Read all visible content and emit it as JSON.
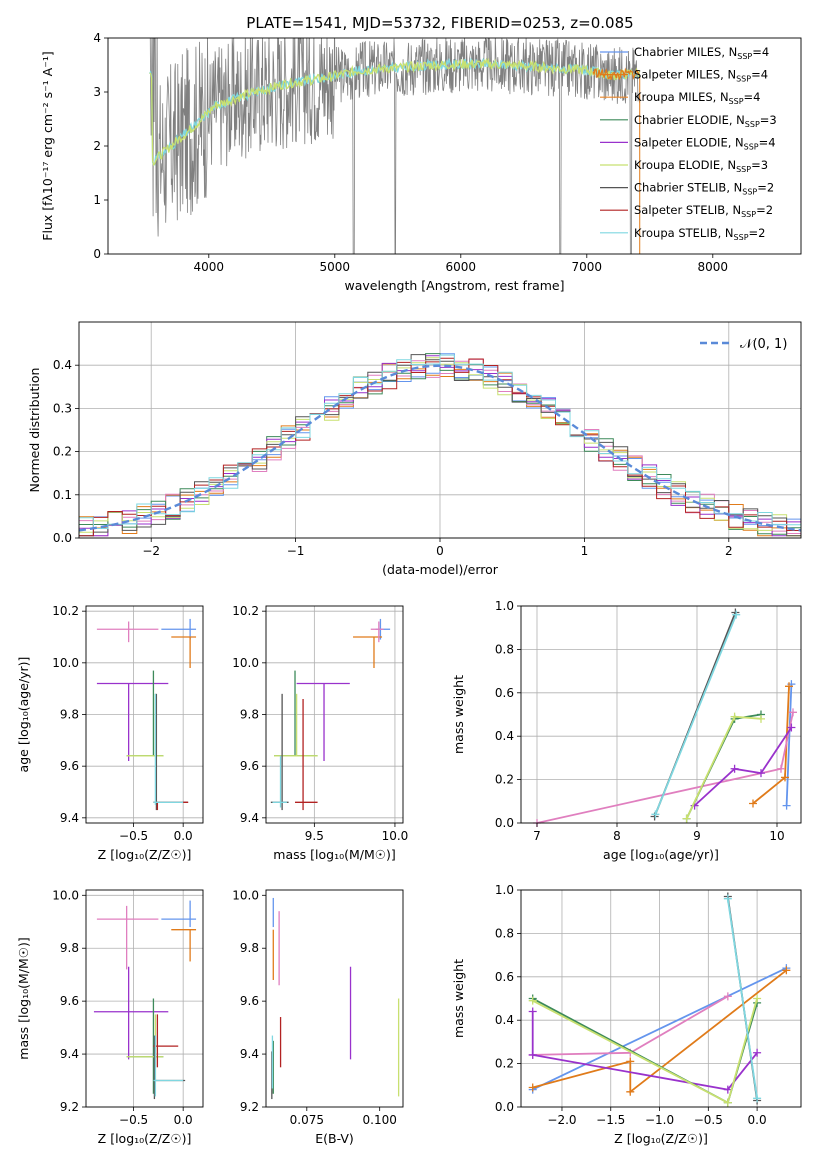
{
  "title": "PLATE=1541, MJD=53732, FIBERID=0253, z=0.085",
  "colors": {
    "chabrier_miles": "#6495ed",
    "salpeter_miles": "#e07b1a",
    "kroupa_miles": "#e8862a",
    "chabrier_elodie": "#3d8a5a",
    "salpeter_elodie": "#9932cc",
    "kroupa_elodie": "#c8e070",
    "chabrier_stelib": "#555555",
    "salpeter_stelib": "#b22222",
    "kroupa_stelib": "#7fd7e0",
    "pink": "#e07fbf",
    "data": "#808080",
    "normal": "#5a8ad8"
  },
  "chart_data": [
    {
      "id": "spectrum",
      "type": "line",
      "xlabel": "wavelength [Angstrom, rest frame]",
      "ylabel": "Flux [f$\\lambda$10$^{-17}$ erg cm$^{-2}$ s$^{-1}$ A$^{-1}$]",
      "ylabel_display": "Flux [fλ10⁻¹⁷ erg cm⁻² s⁻¹ A⁻¹]",
      "xlim": [
        3200,
        8700
      ],
      "ylim": [
        0,
        4
      ],
      "xticks": [
        4000,
        5000,
        6000,
        7000,
        8000
      ],
      "yticks": [
        0,
        1,
        2,
        3,
        4
      ],
      "grid": false,
      "legend_position": "top-right",
      "legend": [
        {
          "label": "Chabrier MILES, N",
          "sub": "SSP",
          "tail": "=4",
          "color_key": "chabrier_miles"
        },
        {
          "label": "Salpeter MILES, N",
          "sub": "SSP",
          "tail": "=4",
          "color_key": "salpeter_miles"
        },
        {
          "label": "Kroupa MILES, N",
          "sub": "SSP",
          "tail": "=4",
          "color_key": "kroupa_miles"
        },
        {
          "label": "Chabrier ELODIE, N",
          "sub": "SSP",
          "tail": "=3",
          "color_key": "chabrier_elodie"
        },
        {
          "label": "Salpeter ELODIE, N",
          "sub": "SSP",
          "tail": "=4",
          "color_key": "salpeter_elodie"
        },
        {
          "label": "Kroupa ELODIE, N",
          "sub": "SSP",
          "tail": "=3",
          "color_key": "kroupa_elodie"
        },
        {
          "label": "Chabrier STELIB, N",
          "sub": "SSP",
          "tail": "=2",
          "color_key": "chabrier_stelib"
        },
        {
          "label": "Salpeter STELIB, N",
          "sub": "SSP",
          "tail": "=2",
          "color_key": "salpeter_stelib"
        },
        {
          "label": "Kroupa STELIB, N",
          "sub": "SSP",
          "tail": "=2",
          "color_key": "kroupa_stelib"
        }
      ],
      "continuum": {
        "x": [
          3550,
          3700,
          3900,
          4050,
          4300,
          4600,
          4900,
          5200,
          5500,
          5800,
          6100,
          6400,
          6700,
          7000,
          7200,
          7400
        ],
        "y": [
          1.7,
          2.0,
          2.4,
          2.75,
          2.95,
          3.15,
          3.25,
          3.4,
          3.45,
          3.5,
          3.52,
          3.5,
          3.45,
          3.4,
          3.3,
          3.35
        ]
      },
      "models": [
        {
          "x0": 3530,
          "x1": 7420,
          "color_key": "kroupa_stelib"
        },
        {
          "x0": 3530,
          "x1": 7420,
          "color_key": "kroupa_elodie"
        },
        {
          "x0": 7050,
          "x1": 7420,
          "color_key": "salpeter_miles"
        }
      ]
    },
    {
      "id": "residuals",
      "type": "histogram",
      "xlabel": "(data-model)/error",
      "ylabel": "Normed distribution",
      "xlim": [
        -2.5,
        2.5
      ],
      "ylim": [
        0,
        0.5
      ],
      "xticks": [
        -2,
        -1,
        0,
        1,
        2
      ],
      "yticks": [
        0.0,
        0.1,
        0.2,
        0.3,
        0.4
      ],
      "ytick_labels": [
        "0.0",
        "0.1",
        "0.2",
        "0.3",
        "0.4"
      ],
      "xtick_labels": [
        "−2",
        "−1",
        "0",
        "1",
        "2"
      ],
      "grid": true,
      "legend_position": "top-right",
      "legend": [
        {
          "label": "𝒩(0, 1)",
          "color_key": "normal"
        }
      ],
      "bin_width": 0.1,
      "series_colors": [
        "chabrier_miles",
        "salpeter_miles",
        "pink",
        "chabrier_elodie",
        "salpeter_elodie",
        "kroupa_elodie",
        "chabrier_stelib",
        "salpeter_stelib",
        "kroupa_stelib"
      ],
      "normal_mean": 0,
      "normal_sigma": 1
    },
    {
      "id": "age_vs_z",
      "type": "errorbar",
      "xlabel": "Z [log₁₀(Z/Z☉)]",
      "ylabel": "age  [log₁₀(age/yr)]",
      "xlim": [
        -0.98,
        0.2
      ],
      "ylim": [
        9.38,
        10.22
      ],
      "xticks": [
        -0.5,
        0.0
      ],
      "xtick_labels": [
        "−0.5",
        "0.0"
      ],
      "yticks": [
        9.4,
        9.6,
        9.8,
        10.0,
        10.2
      ],
      "ytick_labels": [
        "9.4",
        "9.6",
        "9.8",
        "10.0",
        "10.2"
      ],
      "grid": true,
      "points": [
        {
          "x": 0.07,
          "y": 10.13,
          "xl": -0.22,
          "xh": 0.13,
          "yl": 10.09,
          "yh": 10.17,
          "color_key": "chabrier_miles"
        },
        {
          "x": 0.07,
          "y": 10.1,
          "xl": -0.12,
          "xh": 0.13,
          "yl": 9.98,
          "yh": 10.1,
          "color_key": "salpeter_miles"
        },
        {
          "x": -0.55,
          "y": 10.13,
          "xl": -0.87,
          "xh": -0.25,
          "yl": 10.08,
          "yh": 10.16,
          "color_key": "pink"
        },
        {
          "x": -0.55,
          "y": 9.92,
          "xl": -0.87,
          "xh": -0.15,
          "yl": 9.62,
          "yh": 9.92,
          "color_key": "salpeter_elodie"
        },
        {
          "x": -0.3,
          "y": 9.64,
          "xl": -0.57,
          "xh": -0.2,
          "yl": 9.64,
          "yh": 9.97,
          "color_key": "chabrier_elodie"
        },
        {
          "x": -0.28,
          "y": 9.64,
          "xl": -0.57,
          "xh": -0.2,
          "yl": 9.64,
          "yh": 9.88,
          "color_key": "kroupa_elodie"
        },
        {
          "x": -0.27,
          "y": 9.46,
          "xl": -0.3,
          "xh": 0.05,
          "yl": 9.43,
          "yh": 9.88,
          "color_key": "chabrier_stelib"
        },
        {
          "x": -0.26,
          "y": 9.46,
          "xl": -0.3,
          "xh": 0.05,
          "yl": 9.43,
          "yh": 9.46,
          "color_key": "salpeter_stelib"
        },
        {
          "x": -0.28,
          "y": 9.46,
          "xl": -0.3,
          "xh": 0.0,
          "yl": 9.45,
          "yh": 9.88,
          "color_key": "kroupa_stelib"
        }
      ]
    },
    {
      "id": "age_vs_mass",
      "type": "errorbar",
      "xlabel": "mass [log₁₀(M/M☉)]",
      "ylabel": "",
      "xlim": [
        9.2,
        10.05
      ],
      "ylim": [
        9.38,
        10.22
      ],
      "xticks": [
        9.5,
        10.0
      ],
      "xtick_labels": [
        "9.5",
        "10.0"
      ],
      "yticks": [
        9.4,
        9.6,
        9.8,
        10.0,
        10.2
      ],
      "ytick_labels": [
        "9.4",
        "9.6",
        "9.8",
        "10.0",
        "10.2"
      ],
      "grid": true,
      "points": [
        {
          "x": 9.91,
          "y": 10.13,
          "xl": 9.88,
          "xh": 9.97,
          "yl": 10.09,
          "yh": 10.17,
          "color_key": "chabrier_miles"
        },
        {
          "x": 9.87,
          "y": 10.1,
          "xl": 9.74,
          "xh": 9.92,
          "yl": 9.98,
          "yh": 10.1,
          "color_key": "salpeter_miles"
        },
        {
          "x": 9.9,
          "y": 10.13,
          "xl": 9.85,
          "xh": 9.93,
          "yl": 10.08,
          "yh": 10.16,
          "color_key": "pink"
        },
        {
          "x": 9.56,
          "y": 9.92,
          "xl": 9.39,
          "xh": 9.72,
          "yl": 9.62,
          "yh": 9.92,
          "color_key": "salpeter_elodie"
        },
        {
          "x": 9.38,
          "y": 9.64,
          "xl": 9.25,
          "xh": 9.52,
          "yl": 9.64,
          "yh": 9.97,
          "color_key": "chabrier_elodie"
        },
        {
          "x": 9.39,
          "y": 9.64,
          "xl": 9.25,
          "xh": 9.52,
          "yl": 9.64,
          "yh": 9.88,
          "color_key": "kroupa_elodie"
        },
        {
          "x": 9.3,
          "y": 9.46,
          "xl": 9.23,
          "xh": 9.34,
          "yl": 9.43,
          "yh": 9.88,
          "color_key": "chabrier_stelib"
        },
        {
          "x": 9.43,
          "y": 9.46,
          "xl": 9.38,
          "xh": 9.52,
          "yl": 9.43,
          "yh": 9.86,
          "color_key": "salpeter_stelib"
        },
        {
          "x": 9.29,
          "y": 9.46,
          "xl": 9.24,
          "xh": 9.33,
          "yl": 9.44,
          "yh": 9.64,
          "color_key": "kroupa_stelib"
        }
      ]
    },
    {
      "id": "mass_vs_z",
      "type": "errorbar",
      "xlabel": "Z [log₁₀(Z/Z☉)]",
      "ylabel": "mass [log₁₀(M/M☉)]",
      "xlim": [
        -0.98,
        0.2
      ],
      "ylim": [
        9.2,
        10.02
      ],
      "xticks": [
        -0.5,
        0.0
      ],
      "xtick_labels": [
        "−0.5",
        "0.0"
      ],
      "yticks": [
        9.2,
        9.4,
        9.6,
        9.8,
        10.0
      ],
      "ytick_labels": [
        "9.2",
        "9.4",
        "9.6",
        "9.8",
        "10.0"
      ],
      "grid": true,
      "points": [
        {
          "x": 0.07,
          "y": 9.91,
          "xl": -0.22,
          "xh": 0.13,
          "yl": 9.88,
          "yh": 9.98,
          "color_key": "chabrier_miles"
        },
        {
          "x": 0.07,
          "y": 9.87,
          "xl": -0.12,
          "xh": 0.13,
          "yl": 9.75,
          "yh": 9.87,
          "color_key": "salpeter_miles"
        },
        {
          "x": -0.57,
          "y": 9.91,
          "xl": -0.87,
          "xh": -0.25,
          "yl": 9.72,
          "yh": 9.96,
          "color_key": "pink"
        },
        {
          "x": -0.55,
          "y": 9.56,
          "xl": -0.9,
          "xh": -0.15,
          "yl": 9.38,
          "yh": 9.73,
          "color_key": "salpeter_elodie"
        },
        {
          "x": -0.3,
          "y": 9.39,
          "xl": -0.57,
          "xh": -0.2,
          "yl": 9.25,
          "yh": 9.61,
          "color_key": "chabrier_elodie"
        },
        {
          "x": -0.28,
          "y": 9.39,
          "xl": -0.57,
          "xh": -0.2,
          "yl": 9.3,
          "yh": 9.55,
          "color_key": "kroupa_elodie"
        },
        {
          "x": -0.29,
          "y": 9.3,
          "xl": -0.3,
          "xh": 0.02,
          "yl": 9.23,
          "yh": 9.47,
          "color_key": "chabrier_stelib"
        },
        {
          "x": -0.26,
          "y": 9.43,
          "xl": -0.3,
          "xh": -0.05,
          "yl": 9.35,
          "yh": 9.55,
          "color_key": "salpeter_stelib"
        },
        {
          "x": -0.28,
          "y": 9.3,
          "xl": -0.3,
          "xh": 0.0,
          "yl": 9.24,
          "yh": 9.47,
          "color_key": "kroupa_stelib"
        }
      ]
    },
    {
      "id": "mass_vs_ebv",
      "type": "errorbar",
      "xlabel": "E(B-V)",
      "ylabel": "",
      "xlim": [
        0.061,
        0.108
      ],
      "ylim": [
        9.2,
        10.02
      ],
      "xticks": [
        0.075,
        0.1
      ],
      "xtick_labels": [
        "0.075",
        "0.100"
      ],
      "yticks": [
        9.2,
        9.4,
        9.6,
        9.8,
        10.0
      ],
      "ytick_labels": [
        "9.2",
        "9.4",
        "9.6",
        "9.8",
        "10.0"
      ],
      "grid": false,
      "points": [
        {
          "x": 0.0635,
          "y": 9.91,
          "yl": 9.88,
          "yh": 9.99,
          "color_key": "chabrier_miles"
        },
        {
          "x": 0.0635,
          "y": 9.87,
          "yl": 9.68,
          "yh": 9.87,
          "color_key": "salpeter_miles"
        },
        {
          "x": 0.0655,
          "y": 9.91,
          "yl": 9.66,
          "yh": 9.94,
          "color_key": "pink"
        },
        {
          "x": 0.09,
          "y": 9.56,
          "yl": 9.38,
          "yh": 9.73,
          "color_key": "salpeter_elodie"
        },
        {
          "x": 0.0635,
          "y": 9.39,
          "yl": 9.25,
          "yh": 9.45,
          "color_key": "chabrier_elodie"
        },
        {
          "x": 0.1065,
          "y": 9.39,
          "yl": 9.24,
          "yh": 9.61,
          "color_key": "kroupa_elodie"
        },
        {
          "x": 0.063,
          "y": 9.3,
          "yl": 9.23,
          "yh": 9.41,
          "color_key": "chabrier_stelib"
        },
        {
          "x": 0.066,
          "y": 9.43,
          "yl": 9.35,
          "yh": 9.54,
          "color_key": "salpeter_stelib"
        },
        {
          "x": 0.0632,
          "y": 9.3,
          "yl": 9.27,
          "yh": 9.47,
          "color_key": "kroupa_stelib"
        }
      ]
    },
    {
      "id": "weight_vs_age",
      "type": "line",
      "xlabel": "age  [log₁₀(age/yr)]",
      "ylabel": "mass weight",
      "xlim": [
        6.8,
        10.3
      ],
      "ylim": [
        0,
        1.0
      ],
      "xticks": [
        7,
        8,
        9,
        10
      ],
      "xtick_labels": [
        "7",
        "8",
        "9",
        "10"
      ],
      "yticks": [
        0.0,
        0.2,
        0.4,
        0.6,
        0.8,
        1.0
      ],
      "ytick_labels": [
        "0.0",
        "0.2",
        "0.4",
        "0.6",
        "0.8",
        "1.0"
      ],
      "grid": true,
      "series": [
        {
          "color_key": "chabrier_miles",
          "x": [
            10.12,
            10.18
          ],
          "y": [
            0.08,
            0.64
          ]
        },
        {
          "color_key": "salpeter_miles",
          "x": [
            9.7,
            10.1,
            10.15
          ],
          "y": [
            0.09,
            0.21,
            0.63
          ]
        },
        {
          "color_key": "pink",
          "x": [
            7.0,
            10.05,
            10.2
          ],
          "y": [
            0.0,
            0.25,
            0.51
          ]
        },
        {
          "color_key": "salpeter_elodie",
          "x": [
            8.97,
            9.47,
            9.8,
            10.18
          ],
          "y": [
            0.08,
            0.25,
            0.23,
            0.44
          ]
        },
        {
          "color_key": "chabrier_elodie",
          "x": [
            8.87,
            9.47,
            9.8
          ],
          "y": [
            0.02,
            0.48,
            0.5
          ]
        },
        {
          "color_key": "kroupa_elodie",
          "x": [
            8.87,
            9.47,
            9.8
          ],
          "y": [
            0.02,
            0.49,
            0.48
          ]
        },
        {
          "color_key": "chabrier_stelib",
          "x": [
            8.47,
            9.48
          ],
          "y": [
            0.03,
            0.97
          ]
        },
        {
          "color_key": "kroupa_stelib",
          "x": [
            8.48,
            9.49
          ],
          "y": [
            0.04,
            0.96
          ]
        }
      ]
    },
    {
      "id": "weight_vs_z",
      "type": "line",
      "xlabel": "Z [log₁₀(Z/Z☉)]",
      "ylabel": "mass weight",
      "xlim": [
        -2.42,
        0.45
      ],
      "ylim": [
        0,
        1.0
      ],
      "xticks": [
        -2.0,
        -1.5,
        -1.0,
        -0.5,
        0.0
      ],
      "xtick_labels": [
        "−2.0",
        "−1.5",
        "−1.0",
        "−0.5",
        "0.0"
      ],
      "yticks": [
        0.0,
        0.2,
        0.4,
        0.6,
        0.8,
        1.0
      ],
      "ytick_labels": [
        "0.0",
        "0.2",
        "0.4",
        "0.6",
        "0.8",
        "1.0"
      ],
      "grid": true,
      "series": [
        {
          "color_key": "chabrier_miles",
          "x": [
            -2.3,
            0.3
          ],
          "y": [
            0.08,
            0.64
          ]
        },
        {
          "color_key": "salpeter_miles",
          "x": [
            -2.3,
            -1.3,
            -1.3,
            0.3
          ],
          "y": [
            0.09,
            0.21,
            0.07,
            0.63
          ]
        },
        {
          "color_key": "pink",
          "x": [
            -2.3,
            -1.3,
            -0.3
          ],
          "y": [
            0.24,
            0.25,
            0.51
          ]
        },
        {
          "color_key": "salpeter_elodie",
          "x": [
            -2.3,
            -2.3,
            -0.3,
            0.0
          ],
          "y": [
            0.44,
            0.24,
            0.08,
            0.25
          ]
        },
        {
          "color_key": "chabrier_elodie",
          "x": [
            -2.3,
            -0.3,
            0.0
          ],
          "y": [
            0.5,
            0.02,
            0.48
          ]
        },
        {
          "color_key": "kroupa_elodie",
          "x": [
            -2.3,
            -0.3,
            0.0
          ],
          "y": [
            0.49,
            0.02,
            0.5
          ]
        },
        {
          "color_key": "chabrier_stelib",
          "x": [
            -0.3,
            0.0
          ],
          "y": [
            0.97,
            0.03
          ]
        },
        {
          "color_key": "kroupa_stelib",
          "x": [
            -0.3,
            0.0
          ],
          "y": [
            0.96,
            0.04
          ]
        }
      ]
    }
  ]
}
